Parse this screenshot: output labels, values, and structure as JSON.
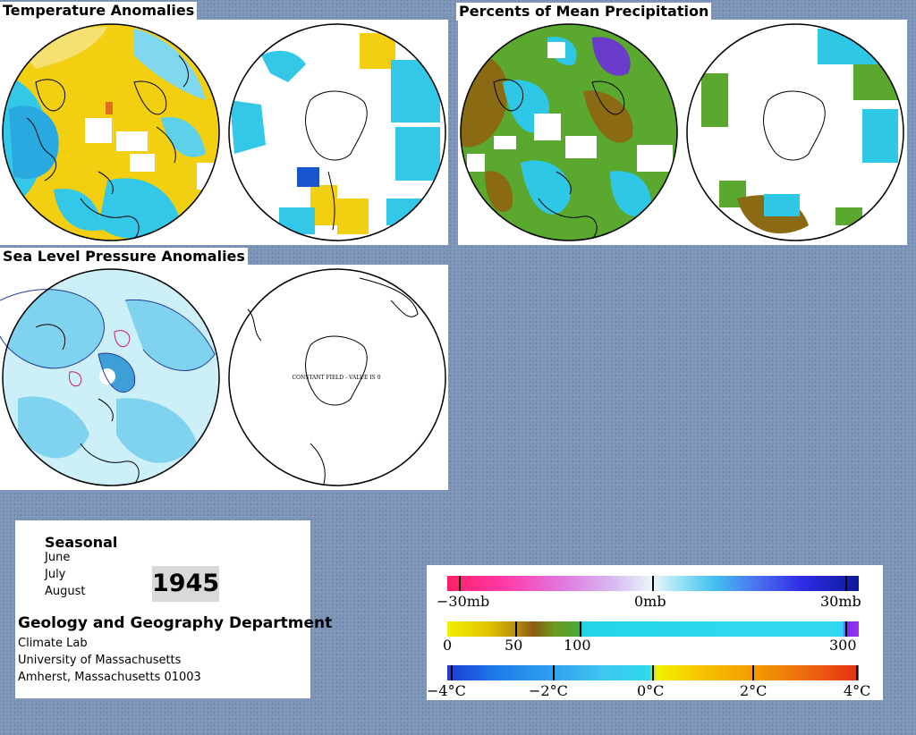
{
  "panels": {
    "temperature": {
      "title": "Temperature Anomalies"
    },
    "precipitation": {
      "title": "Percents of Mean Precipitation"
    },
    "pressure": {
      "title": "Sea Level Pressure Anomalies",
      "south_note": "CONSTANT FIELD - VALUE IS 0"
    }
  },
  "info": {
    "season": "Seasonal",
    "months": [
      "June",
      "July",
      "August"
    ],
    "year": "1945",
    "department": "Geology and Geography Department",
    "address_lines": [
      "Climate Lab",
      "University of Massachusetts",
      "Amherst, Massachusetts 01003"
    ]
  },
  "legend": {
    "pressure": {
      "labels": [
        "−30mb",
        "0mb",
        "30mb"
      ]
    },
    "precip": {
      "labels": [
        "0",
        "50",
        "100",
        "300"
      ]
    },
    "temp": {
      "labels": [
        "−4°C",
        "−2°C",
        "0°C",
        "2°C",
        "4°C"
      ]
    }
  },
  "colors": {
    "background": "#7b93b7",
    "temp_warm": "#f2cf10",
    "temp_cool": "#33c8e8",
    "precip_dry": "#8a6a12",
    "precip_green": "#5aa82d",
    "precip_wet": "#2ec8e6",
    "pressure_neg": "#7fd3ee",
    "pressure_light": "#cdeff8"
  }
}
